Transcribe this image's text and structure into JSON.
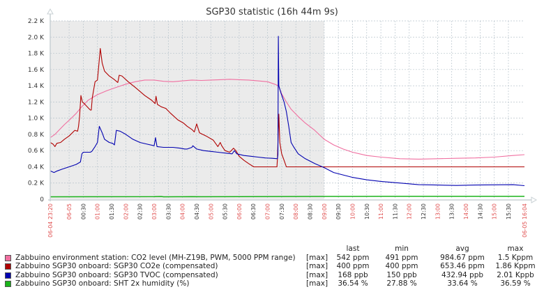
{
  "chart_data": {
    "type": "line",
    "title": "SGP30 statistic (16h 44m 9s)",
    "xlabel": "",
    "ylabel": "",
    "ylim": [
      0,
      2200
    ],
    "grid": true,
    "x_unit": "minutes since 06-04 23:20",
    "xlim": [
      0,
      1004
    ],
    "y_ticks": [
      {
        "v": 0,
        "label": "0"
      },
      {
        "v": 200,
        "label": "0.2 K"
      },
      {
        "v": 400,
        "label": "0.4 K"
      },
      {
        "v": 600,
        "label": "0.6 K"
      },
      {
        "v": 800,
        "label": "0.8 K"
      },
      {
        "v": 1000,
        "label": "1.0 K"
      },
      {
        "v": 1200,
        "label": "1.2 K"
      },
      {
        "v": 1400,
        "label": "1.4 K"
      },
      {
        "v": 1600,
        "label": "1.6 K"
      },
      {
        "v": 1800,
        "label": "1.8 K"
      },
      {
        "v": 2000,
        "label": "2.0 K"
      },
      {
        "v": 2200,
        "label": "2.2 K"
      }
    ],
    "x_ticks": [
      {
        "t": 0,
        "label": "06-04 23:20",
        "major": true,
        "edge": true
      },
      {
        "t": 40,
        "label": "06-05",
        "major": true
      },
      {
        "t": 70,
        "label": "00:30",
        "major": false
      },
      {
        "t": 100,
        "label": "01:00",
        "major": true
      },
      {
        "t": 130,
        "label": "01:30",
        "major": false
      },
      {
        "t": 160,
        "label": "02:00",
        "major": true
      },
      {
        "t": 190,
        "label": "02:30",
        "major": false
      },
      {
        "t": 220,
        "label": "03:00",
        "major": true
      },
      {
        "t": 250,
        "label": "03:30",
        "major": false
      },
      {
        "t": 280,
        "label": "04:00",
        "major": true
      },
      {
        "t": 310,
        "label": "04:30",
        "major": false
      },
      {
        "t": 340,
        "label": "05:00",
        "major": true
      },
      {
        "t": 370,
        "label": "05:30",
        "major": false
      },
      {
        "t": 400,
        "label": "06:00",
        "major": true
      },
      {
        "t": 430,
        "label": "06:30",
        "major": false
      },
      {
        "t": 460,
        "label": "07:00",
        "major": true
      },
      {
        "t": 490,
        "label": "07:30",
        "major": false
      },
      {
        "t": 520,
        "label": "08:00",
        "major": true
      },
      {
        "t": 550,
        "label": "08:30",
        "major": false
      },
      {
        "t": 580,
        "label": "09:00",
        "major": true
      },
      {
        "t": 610,
        "label": "09:30",
        "major": false
      },
      {
        "t": 640,
        "label": "10:00",
        "major": true
      },
      {
        "t": 670,
        "label": "10:30",
        "major": false
      },
      {
        "t": 700,
        "label": "11:00",
        "major": true
      },
      {
        "t": 730,
        "label": "11:30",
        "major": false
      },
      {
        "t": 760,
        "label": "12:00",
        "major": true
      },
      {
        "t": 790,
        "label": "12:30",
        "major": false
      },
      {
        "t": 820,
        "label": "13:00",
        "major": true
      },
      {
        "t": 850,
        "label": "13:30",
        "major": false
      },
      {
        "t": 880,
        "label": "14:00",
        "major": true
      },
      {
        "t": 910,
        "label": "14:30",
        "major": false
      },
      {
        "t": 940,
        "label": "15:00",
        "major": true
      },
      {
        "t": 970,
        "label": "15:30",
        "major": false
      },
      {
        "t": 1004,
        "label": "06-05 16:04",
        "major": true,
        "edge": true
      }
    ],
    "shaded_until": 580,
    "series": [
      {
        "name": "Zabbuino environment station: CO2 level (MH-Z19B, PWM, 5000 PPM range)",
        "color": "#f06fa0",
        "points": [
          [
            0,
            760
          ],
          [
            10,
            800
          ],
          [
            20,
            860
          ],
          [
            30,
            920
          ],
          [
            41,
            980
          ],
          [
            55,
            1060
          ],
          [
            65,
            1130
          ],
          [
            80,
            1220
          ],
          [
            100,
            1290
          ],
          [
            120,
            1340
          ],
          [
            140,
            1380
          ],
          [
            160,
            1420
          ],
          [
            180,
            1450
          ],
          [
            200,
            1470
          ],
          [
            220,
            1470
          ],
          [
            240,
            1455
          ],
          [
            260,
            1450
          ],
          [
            280,
            1460
          ],
          [
            300,
            1470
          ],
          [
            320,
            1465
          ],
          [
            340,
            1470
          ],
          [
            360,
            1475
          ],
          [
            380,
            1480
          ],
          [
            400,
            1475
          ],
          [
            420,
            1470
          ],
          [
            440,
            1460
          ],
          [
            460,
            1450
          ],
          [
            475,
            1420
          ],
          [
            483,
            1400
          ],
          [
            490,
            1300
          ],
          [
            500,
            1200
          ],
          [
            510,
            1110
          ],
          [
            525,
            1020
          ],
          [
            540,
            940
          ],
          [
            560,
            850
          ],
          [
            580,
            740
          ],
          [
            600,
            670
          ],
          [
            620,
            620
          ],
          [
            640,
            580
          ],
          [
            670,
            540
          ],
          [
            700,
            520
          ],
          [
            740,
            500
          ],
          [
            780,
            495
          ],
          [
            820,
            500
          ],
          [
            860,
            505
          ],
          [
            900,
            510
          ],
          [
            940,
            520
          ],
          [
            980,
            540
          ],
          [
            1004,
            550
          ]
        ]
      },
      {
        "name": "Zabbuino SGP30 onboard: SGP30 CO2e (compensated)",
        "color": "#b00000",
        "points": [
          [
            0,
            700
          ],
          [
            6,
            680
          ],
          [
            10,
            650
          ],
          [
            14,
            690
          ],
          [
            22,
            700
          ],
          [
            30,
            740
          ],
          [
            40,
            780
          ],
          [
            52,
            850
          ],
          [
            58,
            840
          ],
          [
            60,
            900
          ],
          [
            62,
            1010
          ],
          [
            65,
            1280
          ],
          [
            68,
            1200
          ],
          [
            72,
            1180
          ],
          [
            80,
            1130
          ],
          [
            85,
            1100
          ],
          [
            87,
            1100
          ],
          [
            89,
            1250
          ],
          [
            95,
            1450
          ],
          [
            100,
            1470
          ],
          [
            102,
            1600
          ],
          [
            106,
            1860
          ],
          [
            110,
            1680
          ],
          [
            115,
            1580
          ],
          [
            125,
            1520
          ],
          [
            135,
            1480
          ],
          [
            143,
            1440
          ],
          [
            146,
            1530
          ],
          [
            152,
            1520
          ],
          [
            165,
            1450
          ],
          [
            180,
            1380
          ],
          [
            200,
            1280
          ],
          [
            215,
            1220
          ],
          [
            222,
            1180
          ],
          [
            224,
            1270
          ],
          [
            227,
            1170
          ],
          [
            235,
            1140
          ],
          [
            240,
            1130
          ],
          [
            245,
            1120
          ],
          [
            255,
            1060
          ],
          [
            270,
            980
          ],
          [
            282,
            940
          ],
          [
            290,
            900
          ],
          [
            300,
            860
          ],
          [
            305,
            830
          ],
          [
            310,
            930
          ],
          [
            316,
            820
          ],
          [
            330,
            780
          ],
          [
            345,
            730
          ],
          [
            355,
            650
          ],
          [
            360,
            700
          ],
          [
            363,
            660
          ],
          [
            370,
            600
          ],
          [
            380,
            580
          ],
          [
            388,
            630
          ],
          [
            393,
            600
          ],
          [
            400,
            530
          ],
          [
            410,
            480
          ],
          [
            420,
            440
          ],
          [
            431,
            400
          ],
          [
            480,
            400
          ],
          [
            481,
            500
          ],
          [
            484,
            1050
          ],
          [
            486,
            700
          ],
          [
            490,
            560
          ],
          [
            495,
            480
          ],
          [
            500,
            400
          ],
          [
            1004,
            400
          ]
        ]
      },
      {
        "name": "Zabbuino SGP30 onboard: SGP30 TVOC (compensated)",
        "color": "#0000b0",
        "points": [
          [
            0,
            350
          ],
          [
            8,
            330
          ],
          [
            15,
            350
          ],
          [
            25,
            370
          ],
          [
            40,
            400
          ],
          [
            55,
            430
          ],
          [
            64,
            460
          ],
          [
            67,
            560
          ],
          [
            70,
            580
          ],
          [
            85,
            580
          ],
          [
            88,
            590
          ],
          [
            95,
            650
          ],
          [
            100,
            700
          ],
          [
            104,
            900
          ],
          [
            110,
            820
          ],
          [
            115,
            740
          ],
          [
            125,
            700
          ],
          [
            132,
            690
          ],
          [
            136,
            670
          ],
          [
            140,
            850
          ],
          [
            148,
            840
          ],
          [
            160,
            800
          ],
          [
            175,
            740
          ],
          [
            190,
            700
          ],
          [
            205,
            680
          ],
          [
            220,
            660
          ],
          [
            223,
            760
          ],
          [
            226,
            650
          ],
          [
            240,
            640
          ],
          [
            260,
            640
          ],
          [
            275,
            630
          ],
          [
            285,
            620
          ],
          [
            290,
            620
          ],
          [
            300,
            640
          ],
          [
            302,
            660
          ],
          [
            310,
            620
          ],
          [
            325,
            600
          ],
          [
            340,
            590
          ],
          [
            355,
            580
          ],
          [
            370,
            570
          ],
          [
            385,
            560
          ],
          [
            390,
            600
          ],
          [
            395,
            560
          ],
          [
            410,
            540
          ],
          [
            425,
            530
          ],
          [
            440,
            520
          ],
          [
            455,
            510
          ],
          [
            470,
            505
          ],
          [
            481,
            500
          ],
          [
            482,
            550
          ],
          [
            483,
            2010
          ],
          [
            484,
            1400
          ],
          [
            488,
            1320
          ],
          [
            495,
            1200
          ],
          [
            500,
            1080
          ],
          [
            505,
            900
          ],
          [
            510,
            700
          ],
          [
            515,
            650
          ],
          [
            525,
            560
          ],
          [
            540,
            500
          ],
          [
            560,
            440
          ],
          [
            580,
            390
          ],
          [
            600,
            330
          ],
          [
            620,
            300
          ],
          [
            640,
            270
          ],
          [
            670,
            240
          ],
          [
            700,
            220
          ],
          [
            740,
            200
          ],
          [
            780,
            180
          ],
          [
            820,
            175
          ],
          [
            860,
            170
          ],
          [
            900,
            175
          ],
          [
            940,
            178
          ],
          [
            980,
            180
          ],
          [
            1004,
            168
          ]
        ]
      },
      {
        "name": "Zabbuino SGP30 onboard: SHT 2x humidity (%)",
        "color": "#1bb31b",
        "points": [
          [
            0,
            30
          ],
          [
            220,
            32
          ],
          [
            235,
            34
          ],
          [
            240,
            30
          ],
          [
            280,
            31
          ],
          [
            300,
            33
          ],
          [
            320,
            31
          ],
          [
            400,
            32
          ],
          [
            580,
            35
          ],
          [
            700,
            36
          ],
          [
            900,
            36
          ],
          [
            1004,
            36
          ]
        ]
      }
    ]
  },
  "legend": {
    "headers": {
      "last": "last",
      "min": "min",
      "avg": "avg",
      "max": "max"
    },
    "rows": [
      {
        "name": "Zabbuino environment station: CO2 level (MH-Z19B, PWM, 5000 PPM range)",
        "fn": "[max]",
        "last": "542 ppm",
        "min": "491 ppm",
        "avg": "984.67 ppm",
        "max": "1.5 Kppm",
        "color": "#f06fa0"
      },
      {
        "name": "Zabbuino SGP30 onboard: SGP30 CO2e (compensated)",
        "fn": "[max]",
        "last": "400 ppm",
        "min": "400 ppm",
        "avg": "653.46 ppm",
        "max": "1.86 Kppm",
        "color": "#b00000"
      },
      {
        "name": "Zabbuino SGP30 onboard: SGP30 TVOC (compensated)",
        "fn": "[max]",
        "last": "168 ppb",
        "min": "150 ppb",
        "avg": "432.94 ppb",
        "max": "2.01 Kppb",
        "color": "#0000b0"
      },
      {
        "name": "Zabbuino SGP30 onboard: SHT 2x humidity (%)",
        "fn": "[max]",
        "last": "36.54 %",
        "min": "27.88 %",
        "avg": "33.64 %",
        "max": "36.59 %",
        "color": "#1bb31b"
      }
    ]
  }
}
